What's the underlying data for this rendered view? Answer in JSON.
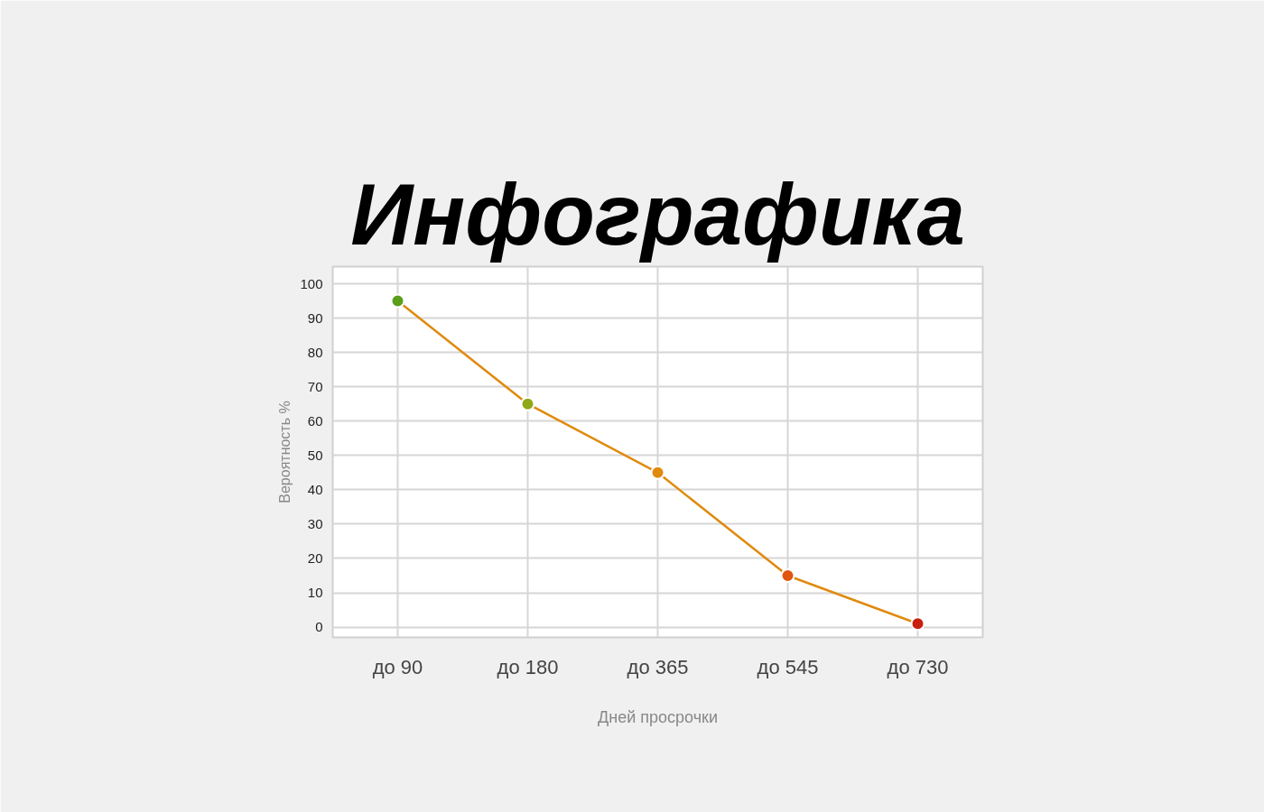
{
  "chart_data": {
    "type": "line",
    "title": "Инфографика",
    "xlabel": "Дней просрочки",
    "ylabel": "Вероятность %",
    "categories": [
      "до 90",
      "до 180",
      "до 365",
      "до 545",
      "до 730"
    ],
    "series": [
      {
        "values": [
          95,
          65,
          45,
          15,
          1
        ],
        "colors": [
          "#5a9e1a",
          "#8fa815",
          "#e08a0e",
          "#e0560e",
          "#c8200e"
        ]
      }
    ],
    "ylim": [
      -3,
      105
    ],
    "yticks": [
      0,
      10,
      20,
      30,
      40,
      50,
      60,
      70,
      80,
      90,
      100
    ],
    "grid": true,
    "marker": "circle",
    "line_style": "solid"
  }
}
